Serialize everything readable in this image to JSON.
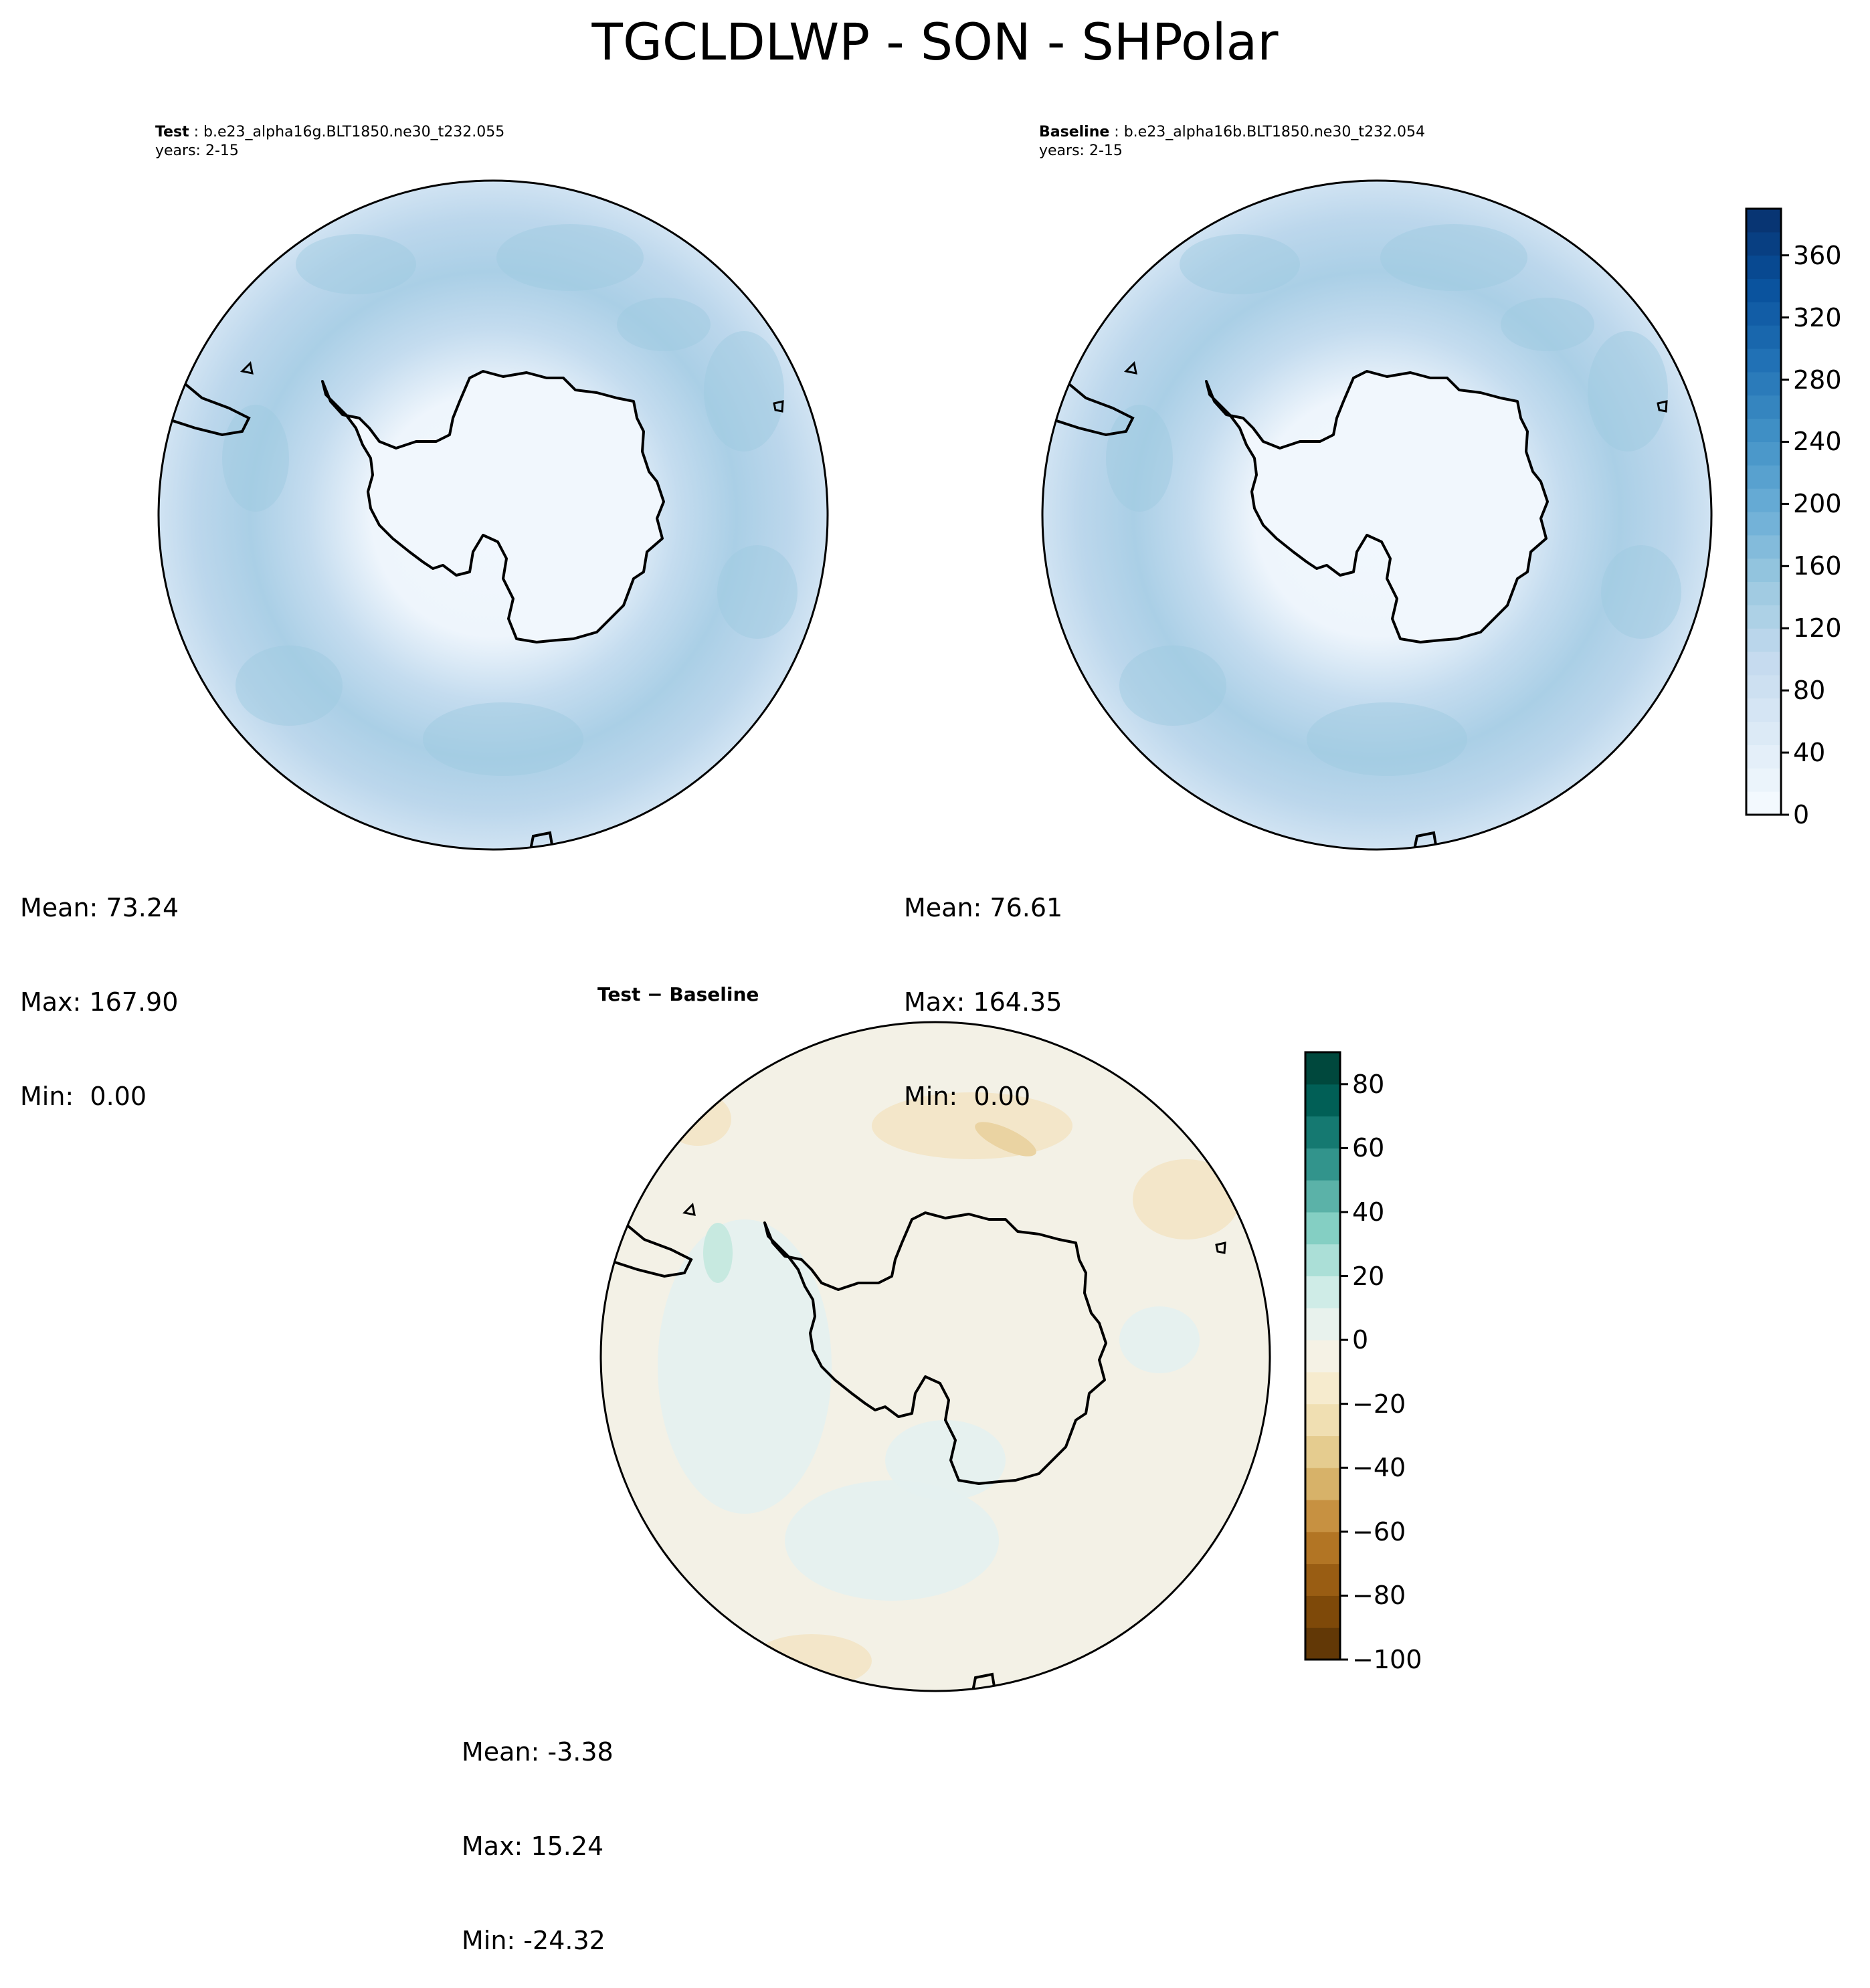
{
  "title": "TGCLDLWP - SON - SHPolar",
  "chart_data": [
    {
      "type": "heatmap",
      "panel": "test",
      "projection": "south polar stereographic",
      "case_label": "Test",
      "case_name": "b.e23_alpha16g.BLT1850.ne30_t232.055",
      "years": "years: 2-15",
      "stats": {
        "mean": "Mean: 73.24",
        "max": "Max: 167.90",
        "min": "Min:  0.00"
      },
      "colormap": "Blues",
      "value_range": [
        0,
        390
      ]
    },
    {
      "type": "heatmap",
      "panel": "baseline",
      "projection": "south polar stereographic",
      "case_label": "Baseline",
      "case_name": "b.e23_alpha16b.BLT1850.ne30_t232.054",
      "years": "years: 2-15",
      "stats": {
        "mean": "Mean: 76.61",
        "max": "Max: 164.35",
        "min": "Min:  0.00"
      },
      "colormap": "Blues",
      "value_range": [
        0,
        390
      ],
      "colorbar": {
        "ticks": [
          "0",
          "40",
          "80",
          "120",
          "160",
          "200",
          "240",
          "280",
          "320",
          "360"
        ],
        "tick_values": [
          0,
          40,
          80,
          120,
          160,
          200,
          240,
          280,
          320,
          360
        ],
        "range": [
          0,
          390
        ],
        "levels": 26,
        "colors": [
          "#f7fbff",
          "#08306b"
        ]
      }
    },
    {
      "type": "heatmap",
      "panel": "difference",
      "projection": "south polar stereographic",
      "title": "Test − Baseline",
      "stats": {
        "mean": "Mean: -3.38",
        "max": "Max: 15.24",
        "min": "Min: -24.32"
      },
      "colormap": "BrBG",
      "value_range": [
        -100,
        90
      ],
      "colorbar": {
        "ticks": [
          "80",
          "60",
          "40",
          "20",
          "0",
          "−20",
          "−40",
          "−60",
          "−80",
          "−100"
        ],
        "tick_values": [
          80,
          60,
          40,
          20,
          0,
          -20,
          -40,
          -60,
          -80,
          -100
        ],
        "range": [
          -100,
          90
        ],
        "levels": 19,
        "colors_negative": [
          "#543005",
          "#8c510a",
          "#bf812d",
          "#dfc27d",
          "#f6e8c3",
          "#f5f5f0"
        ],
        "colors_positive": [
          "#f5f5f0",
          "#c7eae5",
          "#80cdc1",
          "#35978f",
          "#01665e",
          "#003c30"
        ]
      }
    }
  ]
}
